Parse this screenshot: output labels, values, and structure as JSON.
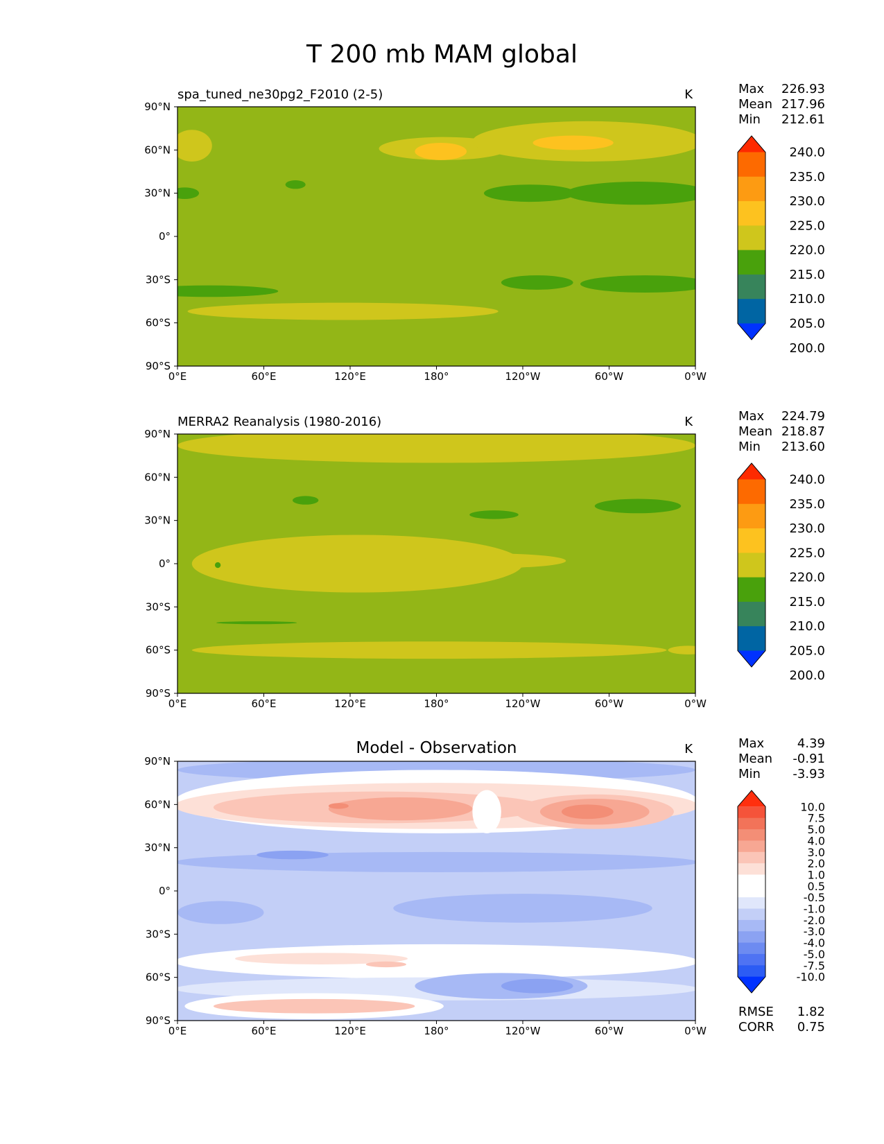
{
  "figure": {
    "title": "T 200 mb MAM global"
  },
  "chart_data": [
    {
      "type": "heatmap",
      "title": "spa_tuned_ne30pg2_F2010 (2-5)",
      "units": "K",
      "stats": [
        {
          "label": "Max",
          "value": "226.93"
        },
        {
          "label": "Mean",
          "value": "217.96"
        },
        {
          "label": "Min",
          "value": "212.61"
        }
      ],
      "xticks": [
        "0°E",
        "60°E",
        "120°E",
        "180°",
        "120°W",
        "60°W",
        "0°W"
      ],
      "yticks": [
        "90°N",
        "60°N",
        "30°N",
        "0°",
        "30°S",
        "60°S",
        "90°S"
      ],
      "colorbar": {
        "levels": [
          "240.0",
          "235.0",
          "230.0",
          "225.0",
          "220.0",
          "215.0",
          "210.0",
          "205.0",
          "200.0"
        ],
        "colors": [
          "#fe2a00",
          "#fd6a00",
          "#fd9b12",
          "#fdc21f",
          "#cfc61c",
          "#49a10c",
          "#37845b",
          "#0065a3",
          "#0032ff"
        ],
        "extend": "both"
      },
      "field": {
        "background": "#93b617",
        "regions": [
          {
            "level": "220.0",
            "color": "#cfc61c",
            "lon": 185,
            "lat": 61,
            "rlon": 45,
            "rlat": 8
          },
          {
            "level": "220.0",
            "color": "#cfc61c",
            "lon": 285,
            "lat": 66,
            "rlon": 80,
            "rlat": 14
          },
          {
            "level": "220.0",
            "color": "#cfc61c",
            "lon": 10,
            "lat": 63,
            "rlon": 14,
            "rlat": 11
          },
          {
            "level": "220.0",
            "color": "#cfc61c",
            "lon": 115,
            "lat": -52,
            "rlon": 108,
            "rlat": 6
          },
          {
            "level": "225.0",
            "color": "#fdc21f",
            "lon": 183,
            "lat": 59,
            "rlon": 18,
            "rlat": 6
          },
          {
            "level": "225.0",
            "color": "#fdc21f",
            "lon": 275,
            "lat": 65,
            "rlon": 28,
            "rlat": 5
          },
          {
            "level": "215.0",
            "color": "#49a10c",
            "lon": 245,
            "lat": 30,
            "rlon": 32,
            "rlat": 6
          },
          {
            "level": "215.0",
            "color": "#49a10c",
            "lon": 320,
            "lat": 30,
            "rlon": 50,
            "rlat": 8
          },
          {
            "level": "215.0",
            "color": "#49a10c",
            "lon": 5,
            "lat": 30,
            "rlon": 10,
            "rlat": 4
          },
          {
            "level": "215.0",
            "color": "#49a10c",
            "lon": 82,
            "lat": 36,
            "rlon": 7,
            "rlat": 3
          },
          {
            "level": "215.0",
            "color": "#49a10c",
            "lon": 22,
            "lat": -38,
            "rlon": 48,
            "rlat": 4
          },
          {
            "level": "215.0",
            "color": "#49a10c",
            "lon": 250,
            "lat": -32,
            "rlon": 25,
            "rlat": 5
          },
          {
            "level": "215.0",
            "color": "#49a10c",
            "lon": 325,
            "lat": -33,
            "rlon": 45,
            "rlat": 6
          }
        ]
      }
    },
    {
      "type": "heatmap",
      "title": "MERRA2 Reanalysis (1980-2016)",
      "units": "K",
      "stats": [
        {
          "label": "Max",
          "value": "224.79"
        },
        {
          "label": "Mean",
          "value": "218.87"
        },
        {
          "label": "Min",
          "value": "213.60"
        }
      ],
      "xticks": [
        "0°E",
        "60°E",
        "120°E",
        "180°",
        "120°W",
        "60°W",
        "0°W"
      ],
      "yticks": [
        "90°N",
        "60°N",
        "30°N",
        "0°",
        "30°S",
        "60°S",
        "90°S"
      ],
      "colorbar": {
        "levels": [
          "240.0",
          "235.0",
          "230.0",
          "225.0",
          "220.0",
          "215.0",
          "210.0",
          "205.0",
          "200.0"
        ],
        "colors": [
          "#fe2a00",
          "#fd6a00",
          "#fd9b12",
          "#fdc21f",
          "#cfc61c",
          "#49a10c",
          "#37845b",
          "#0065a3",
          "#0032ff"
        ],
        "extend": "both"
      },
      "field": {
        "background": "#93b617",
        "regions": [
          {
            "level": "220.0",
            "color": "#cfc61c",
            "lon": 180,
            "lat": 82,
            "rlon": 180,
            "rlat": 12
          },
          {
            "level": "220.0",
            "color": "#cfc61c",
            "lon": 125,
            "lat": 0,
            "rlon": 115,
            "rlat": 20
          },
          {
            "level": "220.0",
            "color": "#cfc61c",
            "lon": 220,
            "lat": 2,
            "rlon": 50,
            "rlat": 5
          },
          {
            "level": "220.0",
            "color": "#cfc61c",
            "lon": 175,
            "lat": -60,
            "rlon": 165,
            "rlat": 6
          },
          {
            "level": "220.0",
            "color": "#cfc61c",
            "lon": 355,
            "lat": -60,
            "rlon": 14,
            "rlat": 3
          },
          {
            "level": "215.0",
            "color": "#49a10c",
            "lon": 89,
            "lat": 44,
            "rlon": 9,
            "rlat": 3
          },
          {
            "level": "215.0",
            "color": "#49a10c",
            "lon": 220,
            "lat": 34,
            "rlon": 17,
            "rlat": 3
          },
          {
            "level": "215.0",
            "color": "#49a10c",
            "lon": 320,
            "lat": 40,
            "rlon": 30,
            "rlat": 5
          },
          {
            "level": "215.0",
            "color": "#49a10c",
            "lon": 28,
            "lat": -1,
            "rlon": 2,
            "rlat": 2
          },
          {
            "level": "215.0",
            "color": "#49a10c",
            "lon": 55,
            "lat": -41,
            "rlon": 28,
            "rlat": 1
          }
        ]
      }
    },
    {
      "type": "heatmap",
      "title": "Model - Observation",
      "units": "K",
      "stats": [
        {
          "label": "Max",
          "value": "4.39"
        },
        {
          "label": "Mean",
          "value": "-0.91"
        },
        {
          "label": "Min",
          "value": "-3.93"
        }
      ],
      "extra_stats": [
        {
          "label": "RMSE",
          "value": "1.82"
        },
        {
          "label": "CORR",
          "value": "0.75"
        }
      ],
      "xticks": [
        "0°E",
        "60°E",
        "120°E",
        "180°",
        "120°W",
        "60°W",
        "0°W"
      ],
      "yticks": [
        "90°N",
        "60°N",
        "30°N",
        "0°",
        "30°S",
        "60°S",
        "90°S"
      ],
      "colorbar": {
        "levels": [
          "10.0",
          "7.5",
          "5.0",
          "4.0",
          "3.0",
          "2.0",
          "1.0",
          "0.5",
          "-0.5",
          "-1.0",
          "-2.0",
          "-3.0",
          "-4.0",
          "-5.0",
          "-7.5",
          "-10.0"
        ],
        "colors": [
          "#ff2f0e",
          "#f5533a",
          "#f27359",
          "#f38e76",
          "#f7a793",
          "#fbc5b7",
          "#fde0d7",
          "#ffffff",
          "#ffffff",
          "#e0e7fb",
          "#c3cff7",
          "#a7b9f5",
          "#8ba2f2",
          "#6d8bf1",
          "#4f73f3",
          "#2c5cf4",
          "#0032ff"
        ],
        "extend": "both"
      },
      "field": {
        "background": "#c3cff7",
        "regions": [
          {
            "level": "-3.0",
            "color": "#a7b9f5",
            "lon": 180,
            "lat": 84,
            "rlon": 180,
            "rlat": 8
          },
          {
            "level": "-0.5",
            "color": "#ffffff",
            "lon": 180,
            "lat": 62,
            "rlon": 182,
            "rlat": 22
          },
          {
            "level": "1.0",
            "color": "#fde0d7",
            "lon": 180,
            "lat": 59,
            "rlon": 182,
            "rlat": 16
          },
          {
            "level": "2.0",
            "color": "#fbc5b7",
            "lon": 140,
            "lat": 58,
            "rlon": 115,
            "rlat": 11
          },
          {
            "level": "2.0",
            "color": "#fbc5b7",
            "lon": 290,
            "lat": 55,
            "rlon": 55,
            "rlat": 12
          },
          {
            "level": "3.0",
            "color": "#f7a793",
            "lon": 155,
            "lat": 57,
            "rlon": 50,
            "rlat": 8
          },
          {
            "level": "3.0",
            "color": "#f7a793",
            "lon": 290,
            "lat": 55,
            "rlon": 38,
            "rlat": 9
          },
          {
            "level": "4.0",
            "color": "#f38e76",
            "lon": 285,
            "lat": 55,
            "rlon": 18,
            "rlat": 5
          },
          {
            "level": "4.0",
            "color": "#f38e76",
            "lon": 112,
            "lat": 59,
            "rlon": 7,
            "rlat": 2
          },
          {
            "level": "-0.5",
            "color": "#ffffff",
            "lon": 215,
            "lat": 55,
            "rlon": 10,
            "rlat": 15
          },
          {
            "level": "-3.0",
            "color": "#a7b9f5",
            "lon": 180,
            "lat": 20,
            "rlon": 182,
            "rlat": 7
          },
          {
            "level": "-4.0",
            "color": "#8ba2f2",
            "lon": 80,
            "lat": 25,
            "rlon": 25,
            "rlat": 3
          },
          {
            "level": "-3.0",
            "color": "#a7b9f5",
            "lon": 240,
            "lat": -12,
            "rlon": 90,
            "rlat": 10
          },
          {
            "level": "-3.0",
            "color": "#a7b9f5",
            "lon": 30,
            "lat": -15,
            "rlon": 30,
            "rlat": 8
          },
          {
            "level": "-0.5",
            "color": "#ffffff",
            "lon": 180,
            "lat": -49,
            "rlon": 182,
            "rlat": 12
          },
          {
            "level": "0.5",
            "color": "#fde0d7",
            "lon": 100,
            "lat": -47,
            "rlon": 60,
            "rlat": 4
          },
          {
            "level": "1.0",
            "color": "#fbc5b7",
            "lon": 145,
            "lat": -51,
            "rlon": 14,
            "rlat": 2
          },
          {
            "level": "-1.0",
            "color": "#e0e7fb",
            "lon": 180,
            "lat": -68,
            "rlon": 182,
            "rlat": 8
          },
          {
            "level": "-3.0",
            "color": "#a7b9f5",
            "lon": 225,
            "lat": -66,
            "rlon": 60,
            "rlat": 9
          },
          {
            "level": "-4.0",
            "color": "#8ba2f2",
            "lon": 250,
            "lat": -66,
            "rlon": 25,
            "rlat": 5
          },
          {
            "level": "-0.5",
            "color": "#ffffff",
            "lon": 95,
            "lat": -80,
            "rlon": 90,
            "rlat": 9
          },
          {
            "level": "1.0",
            "color": "#fbc5b7",
            "lon": 95,
            "lat": -80,
            "rlon": 70,
            "rlat": 5
          }
        ]
      }
    }
  ]
}
